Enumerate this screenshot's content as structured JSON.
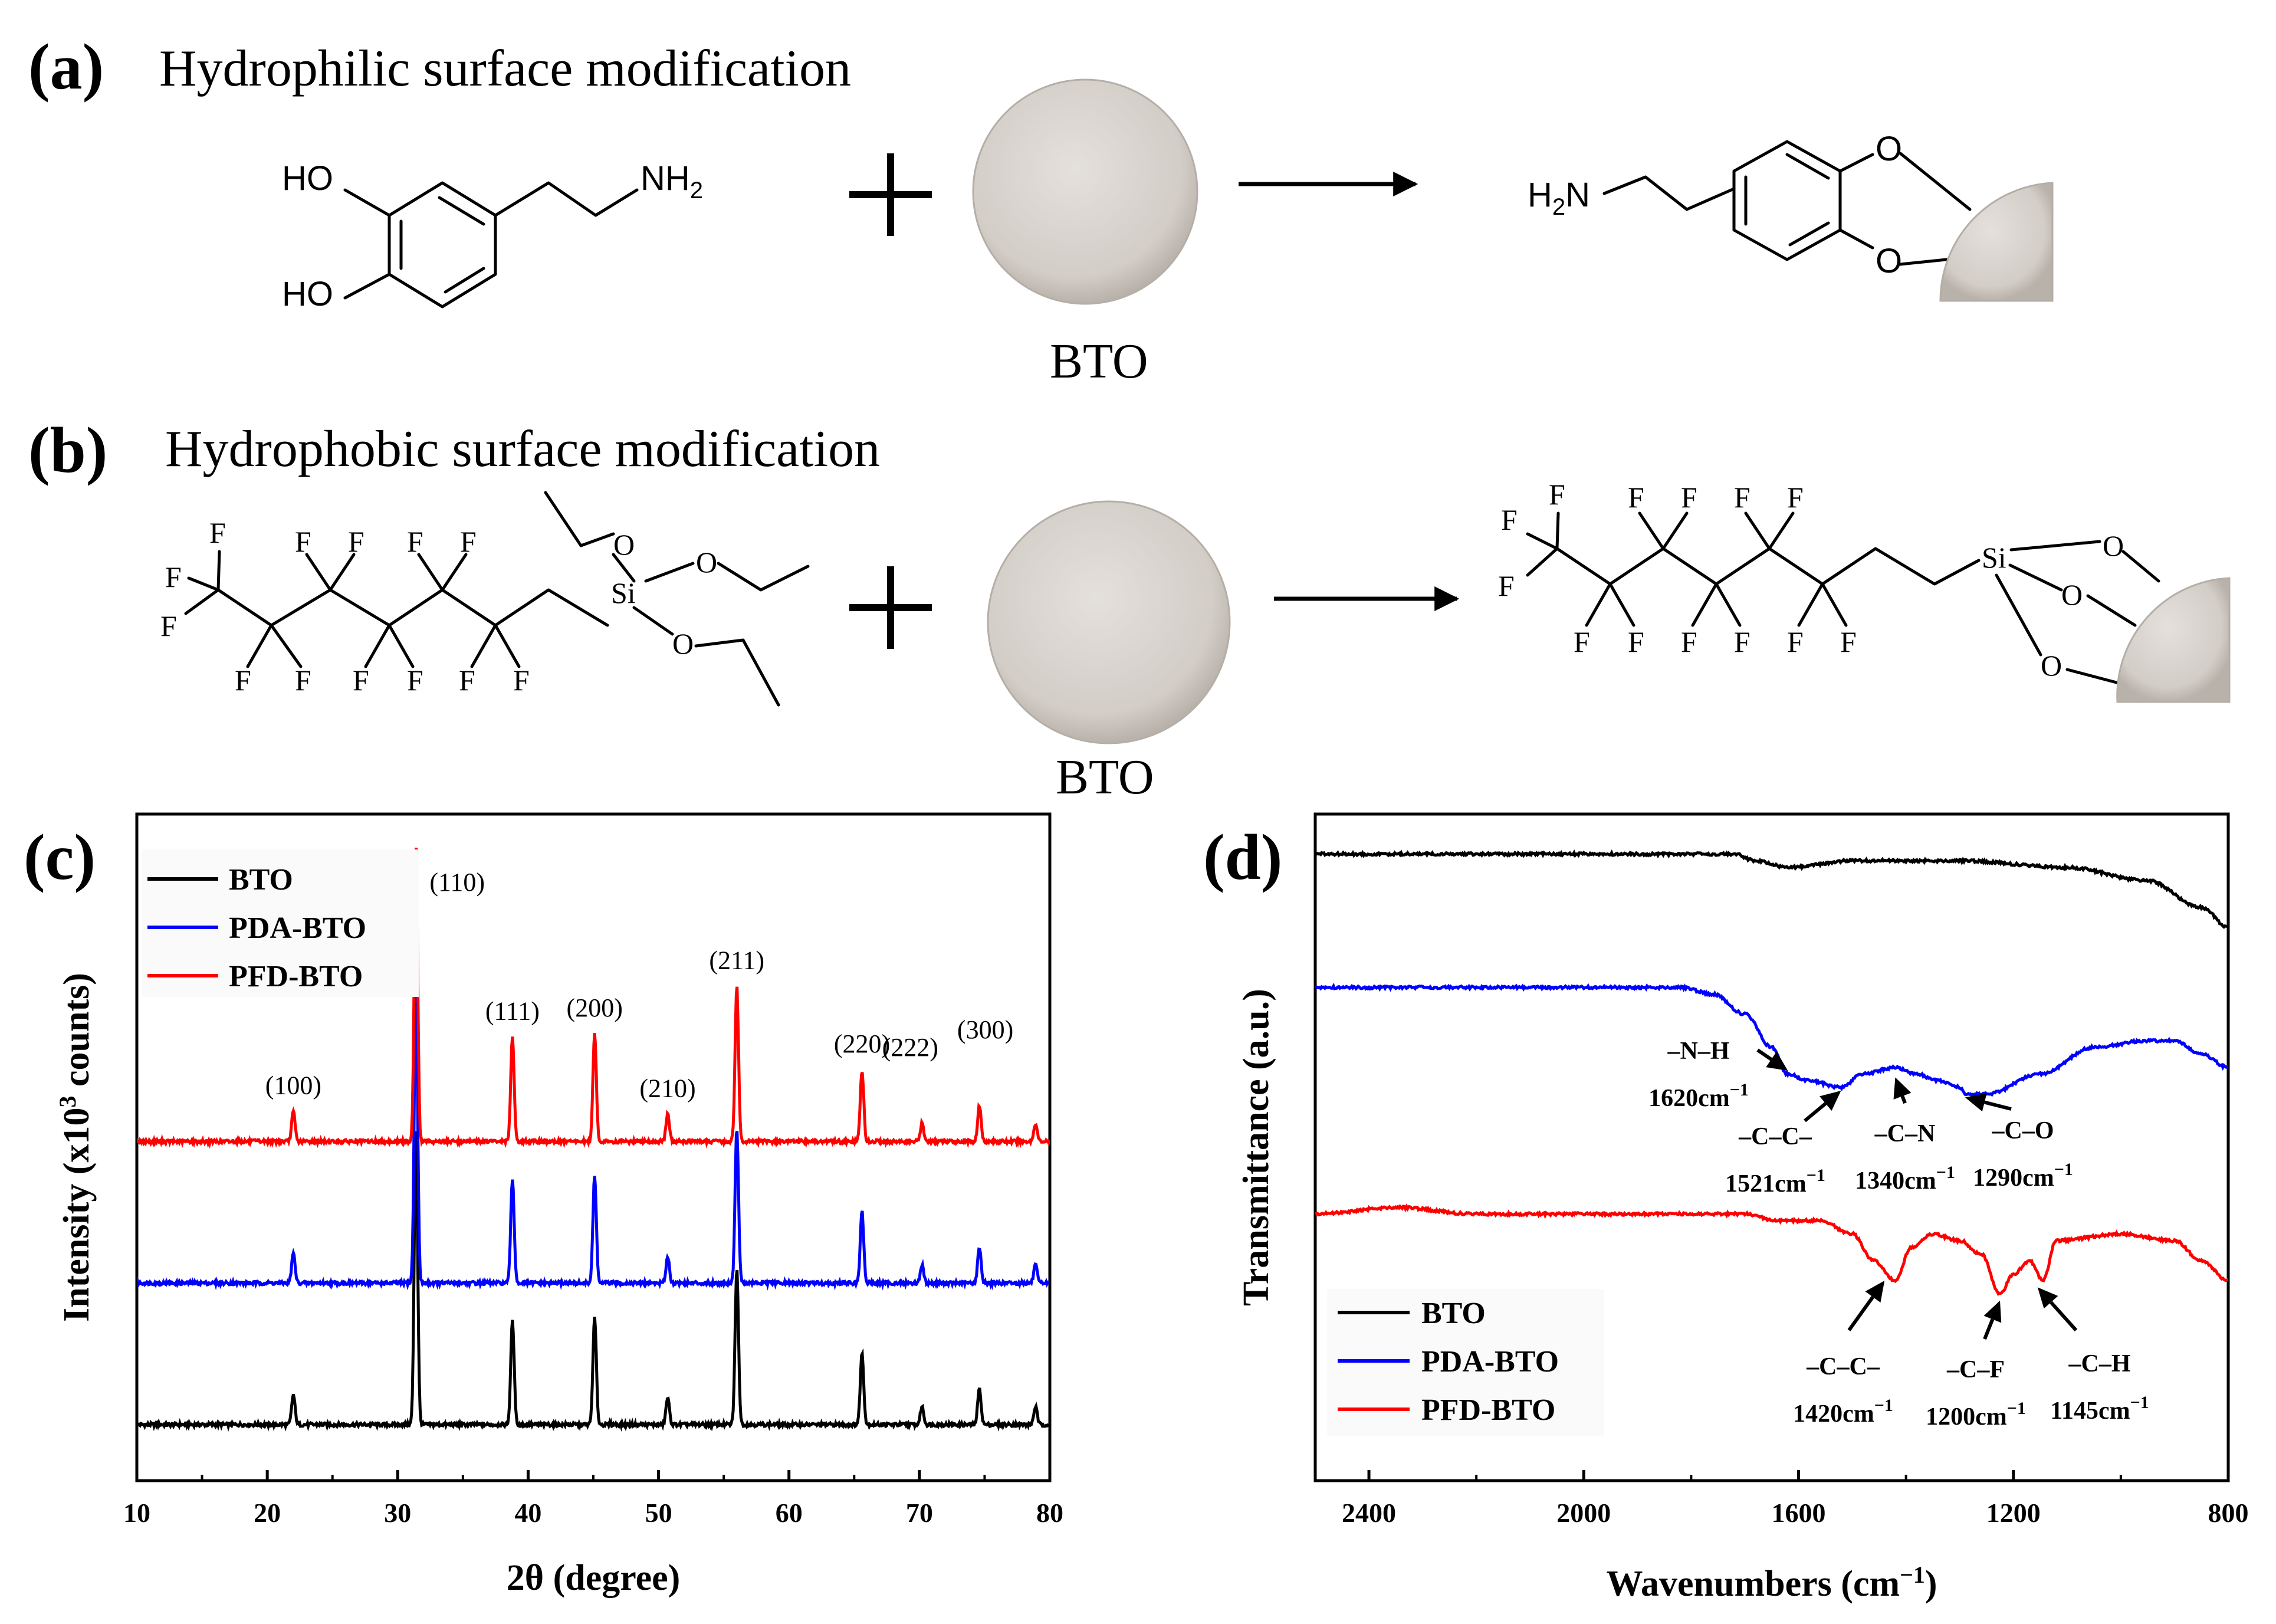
{
  "panel_a": {
    "label": "(a)",
    "heading": "Hydrophilic surface modification",
    "reactant_atoms": {
      "ho1": "HO",
      "ho2": "HO",
      "nh2": "NH",
      "nh2_sub": "2"
    },
    "particle_label": "BTO",
    "product_atoms": {
      "h2n": "H",
      "h2n_sub": "2",
      "h2n_n": "N",
      "o1": "O",
      "o2": "O"
    }
  },
  "panel_b": {
    "label": "(b)",
    "heading": "Hydrophobic surface modification",
    "fluorine": "F",
    "silicon": "Si",
    "oxygen": "O",
    "particle_label": "BTO"
  },
  "colors": {
    "BTO": "#000000",
    "PDA-BTO": "#0000ff",
    "PFD-BTO": "#ff0000",
    "particle": "#d2ccc6"
  },
  "chart_data": [
    {
      "panel": "(c)",
      "type": "line",
      "xlabel": "2θ (degree)",
      "ylabel_main": "Intensity (x10",
      "ylabel_sup": "3",
      "ylabel_end": " counts)",
      "xlim": [
        10,
        80
      ],
      "xticks": [
        10,
        20,
        30,
        40,
        50,
        60,
        70,
        80
      ],
      "peaks": [
        {
          "x": 22.0,
          "h": 0.1,
          "label": "(100)"
        },
        {
          "x": 31.4,
          "h": 1.0,
          "label": "(110)"
        },
        {
          "x": 38.8,
          "h": 0.35,
          "label": "(111)"
        },
        {
          "x": 45.1,
          "h": 0.36,
          "label": "(200)"
        },
        {
          "x": 50.7,
          "h": 0.09,
          "label": "(210)"
        },
        {
          "x": 56.0,
          "h": 0.52,
          "label": "(211)"
        },
        {
          "x": 65.6,
          "h": 0.24,
          "label": "(220)"
        },
        {
          "x": 70.2,
          "h": 0.06,
          "label": "(222)"
        },
        {
          "x": 74.6,
          "h": 0.12,
          "label": "(300)"
        },
        {
          "x": 78.9,
          "h": 0.06,
          "label": ""
        }
      ],
      "series": [
        {
          "name": "BTO",
          "offset": 0
        },
        {
          "name": "PDA-BTO",
          "offset": 1
        },
        {
          "name": "PFD-BTO",
          "offset": 2
        }
      ],
      "legend": [
        "BTO",
        "PDA-BTO",
        "PFD-BTO"
      ],
      "legend_position": "top-left"
    },
    {
      "panel": "(d)",
      "type": "line",
      "xlabel_main": "Wavenumbers (cm",
      "xlabel_sup": "−1",
      "xlabel_end": ")",
      "ylabel": "Transmittance (a.u.)",
      "xlim": [
        2500,
        800
      ],
      "xticks": [
        2400,
        2000,
        1600,
        1200,
        800
      ],
      "series": [
        {
          "name": "BTO",
          "points": [
            [
              2500,
              0.94
            ],
            [
              1720,
              0.94
            ],
            [
              1680,
              0.93
            ],
            [
              1620,
              0.92
            ],
            [
              1500,
              0.93
            ],
            [
              1300,
              0.93
            ],
            [
              1100,
              0.92
            ],
            [
              950,
              0.9
            ],
            [
              850,
              0.86
            ],
            [
              800,
              0.83
            ]
          ]
        },
        {
          "name": "PDA-BTO",
          "points": [
            [
              2500,
              0.74
            ],
            [
              1820,
              0.74
            ],
            [
              1760,
              0.73
            ],
            [
              1700,
              0.7
            ],
            [
              1650,
              0.65
            ],
            [
              1620,
              0.61
            ],
            [
              1580,
              0.6
            ],
            [
              1521,
              0.59
            ],
            [
              1480,
              0.61
            ],
            [
              1420,
              0.62
            ],
            [
              1380,
              0.61
            ],
            [
              1340,
              0.6
            ],
            [
              1300,
              0.59
            ],
            [
              1290,
              0.58
            ],
            [
              1250,
              0.58
            ],
            [
              1150,
              0.61
            ],
            [
              1050,
              0.65
            ],
            [
              950,
              0.66
            ],
            [
              900,
              0.66
            ],
            [
              850,
              0.64
            ],
            [
              800,
              0.62
            ]
          ]
        },
        {
          "name": "PFD-BTO",
          "points": [
            [
              2500,
              0.4
            ],
            [
              2350,
              0.41
            ],
            [
              2200,
              0.4
            ],
            [
              2000,
              0.4
            ],
            [
              1700,
              0.4
            ],
            [
              1640,
              0.39
            ],
            [
              1560,
              0.39
            ],
            [
              1500,
              0.37
            ],
            [
              1460,
              0.33
            ],
            [
              1420,
              0.3
            ],
            [
              1390,
              0.35
            ],
            [
              1350,
              0.37
            ],
            [
              1300,
              0.36
            ],
            [
              1260,
              0.34
            ],
            [
              1225,
              0.28
            ],
            [
              1200,
              0.31
            ],
            [
              1170,
              0.33
            ],
            [
              1145,
              0.3
            ],
            [
              1120,
              0.36
            ],
            [
              1000,
              0.37
            ],
            [
              900,
              0.36
            ],
            [
              850,
              0.33
            ],
            [
              800,
              0.3
            ]
          ]
        }
      ],
      "annotations": [
        {
          "group": "–N–H",
          "wavenumber": "1620cm",
          "unit_sup": "−1"
        },
        {
          "group": "–C–C–",
          "wavenumber": "1521cm",
          "unit_sup": "−1"
        },
        {
          "group": "–C–N",
          "wavenumber": "1340cm",
          "unit_sup": "−1"
        },
        {
          "group": "–C–O",
          "wavenumber": "1290cm",
          "unit_sup": "−1"
        },
        {
          "group": "–C–C–",
          "wavenumber": "1420cm",
          "unit_sup": "−1"
        },
        {
          "group": "–C–F",
          "wavenumber": "1200cm",
          "unit_sup": "−1"
        },
        {
          "group": "–C–H",
          "wavenumber": "1145cm",
          "unit_sup": "−1"
        }
      ],
      "legend": [
        "BTO",
        "PDA-BTO",
        "PFD-BTO"
      ],
      "legend_position": "bottom-left"
    }
  ]
}
